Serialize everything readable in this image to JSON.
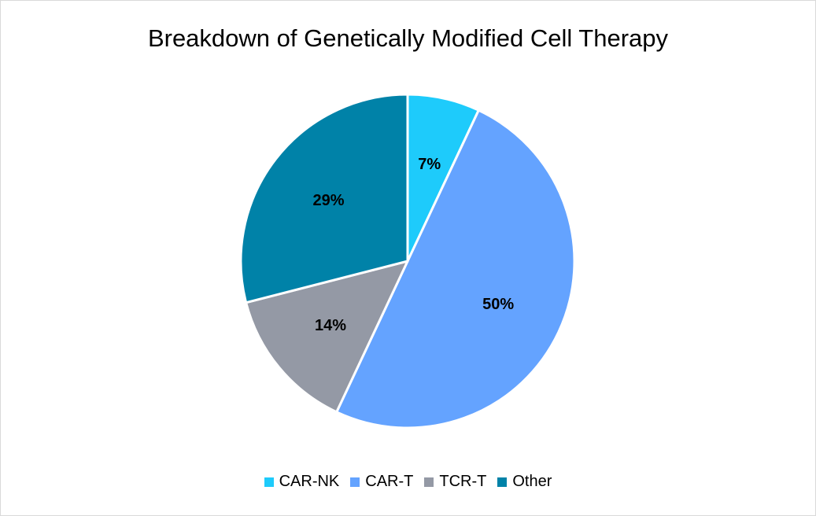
{
  "chart_data": {
    "type": "pie",
    "title": "Breakdown of Genetically Modified Cell Therapy",
    "categories": [
      "CAR-NK",
      "CAR-T",
      "TCR-T",
      "Other"
    ],
    "values": [
      7,
      50,
      14,
      29
    ],
    "data_labels": [
      "7%",
      "50%",
      "14%",
      "29%"
    ],
    "colors": [
      "#1ECBFB",
      "#64A3FF",
      "#9499A5",
      "#0082A8"
    ],
    "start_angle": "top",
    "direction": "clockwise",
    "legend_position": "bottom"
  }
}
